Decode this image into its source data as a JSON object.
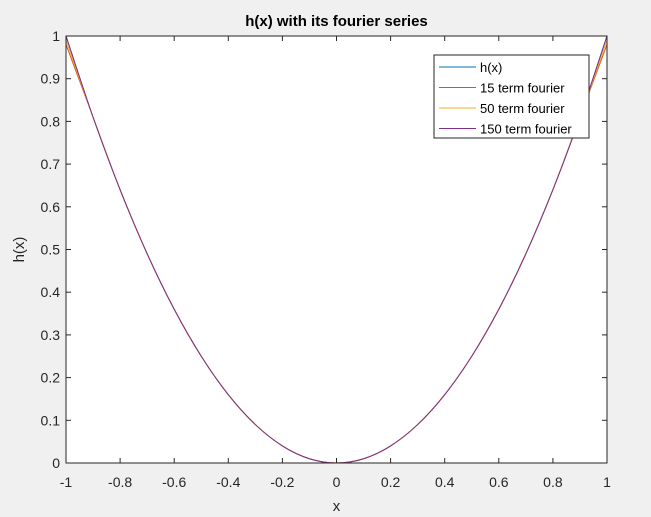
{
  "chart_data": {
    "type": "line",
    "title": "h(x) with its fourier series",
    "xlabel": "x",
    "ylabel": "h(x)",
    "xlim": [
      -1,
      1
    ],
    "ylim": [
      0,
      1
    ],
    "x_ticks": [
      -1,
      -0.8,
      -0.6,
      -0.4,
      -0.2,
      0,
      0.2,
      0.4,
      0.6,
      0.8,
      1
    ],
    "x_tick_labels": [
      "-1",
      "-0.8",
      "-0.6",
      "-0.4",
      "-0.2",
      "0",
      "0.2",
      "0.4",
      "0.6",
      "0.8",
      "1"
    ],
    "y_ticks": [
      0,
      0.1,
      0.2,
      0.3,
      0.4,
      0.5,
      0.6,
      0.7,
      0.8,
      0.9,
      1
    ],
    "y_tick_labels": [
      "0",
      "0.1",
      "0.2",
      "0.3",
      "0.4",
      "0.5",
      "0.6",
      "0.7",
      "0.8",
      "0.9",
      "1"
    ],
    "grid": false,
    "legend_position": "top-right",
    "x": [
      -1,
      -0.9,
      -0.8,
      -0.7,
      -0.6,
      -0.5,
      -0.4,
      -0.3,
      -0.2,
      -0.1,
      0,
      0.1,
      0.2,
      0.3,
      0.4,
      0.5,
      0.6,
      0.7,
      0.8,
      0.9,
      1
    ],
    "series": [
      {
        "name": "h(x)",
        "color": "#0072BD",
        "values": [
          1,
          0.81,
          0.64,
          0.49,
          0.36,
          0.25,
          0.16,
          0.09,
          0.04,
          0.01,
          0,
          0.01,
          0.04,
          0.09,
          0.16,
          0.25,
          0.36,
          0.49,
          0.64,
          0.81,
          1
        ]
      },
      {
        "name": "15 term fourier",
        "color": "#D95319",
        "values": [
          0.98,
          0.81,
          0.64,
          0.49,
          0.36,
          0.25,
          0.16,
          0.09,
          0.04,
          0.01,
          0,
          0.01,
          0.04,
          0.09,
          0.16,
          0.25,
          0.36,
          0.49,
          0.64,
          0.81,
          0.98
        ]
      },
      {
        "name": "50 term fourier",
        "color": "#EDB120",
        "values": [
          0.99,
          0.81,
          0.64,
          0.49,
          0.36,
          0.25,
          0.16,
          0.09,
          0.04,
          0.01,
          0,
          0.01,
          0.04,
          0.09,
          0.16,
          0.25,
          0.36,
          0.49,
          0.64,
          0.81,
          0.99
        ]
      },
      {
        "name": "150 term fourier",
        "color": "#7E2F8E",
        "values": [
          1,
          0.81,
          0.64,
          0.49,
          0.36,
          0.25,
          0.16,
          0.09,
          0.04,
          0.01,
          0,
          0.01,
          0.04,
          0.09,
          0.16,
          0.25,
          0.36,
          0.49,
          0.64,
          0.81,
          1
        ]
      }
    ]
  }
}
